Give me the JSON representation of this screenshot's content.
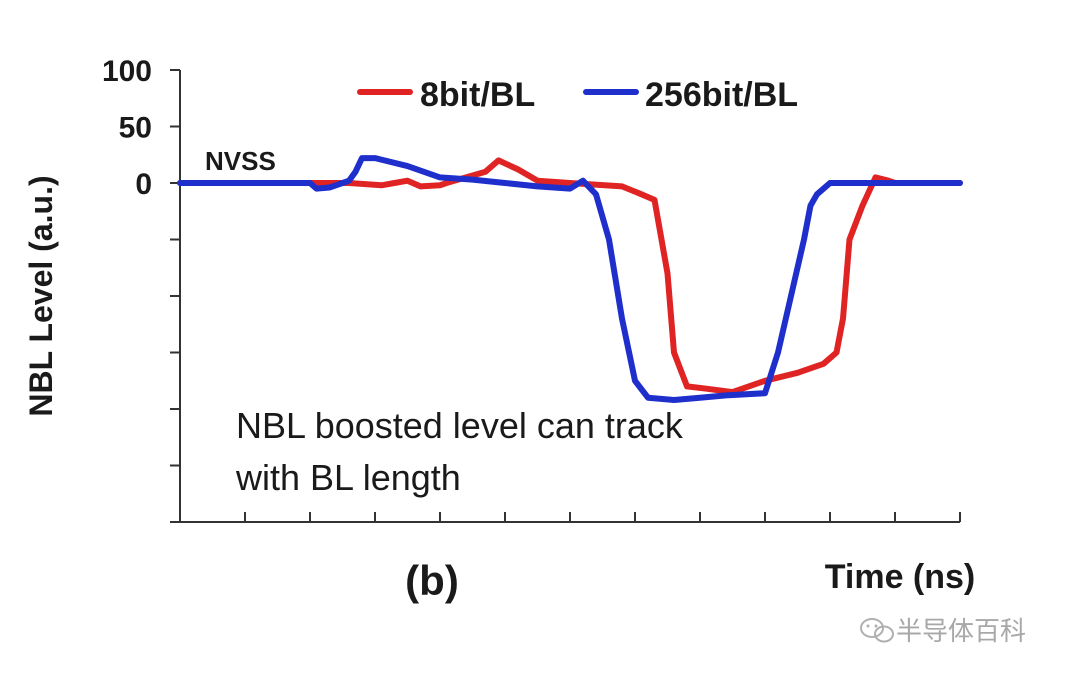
{
  "chart_data": {
    "type": "line",
    "xlabel": "Time (ns)",
    "ylabel": "NBL Level (a.u.)",
    "x_range": [
      0,
      12
    ],
    "y_range": [
      -300,
      100
    ],
    "y_ticks": [
      {
        "value": 100,
        "label": "100"
      },
      {
        "value": 50,
        "label": "50"
      },
      {
        "value": 0,
        "label": "0"
      },
      {
        "value": -50,
        "label": ""
      },
      {
        "value": -100,
        "label": ""
      },
      {
        "value": -150,
        "label": ""
      },
      {
        "value": -200,
        "label": ""
      },
      {
        "value": -250,
        "label": ""
      },
      {
        "value": -300,
        "label": ""
      }
    ],
    "x_ticks": [
      0,
      1,
      2,
      3,
      4,
      5,
      6,
      7,
      8,
      9,
      10,
      11,
      12
    ],
    "grid": false,
    "legend_position": "top",
    "series": [
      {
        "name": "8bit/BL",
        "color": "#e02424",
        "points": [
          [
            0.0,
            0
          ],
          [
            2.0,
            0
          ],
          [
            2.6,
            0
          ],
          [
            3.1,
            -2
          ],
          [
            3.3,
            0
          ],
          [
            3.5,
            2
          ],
          [
            3.7,
            -3
          ],
          [
            4.0,
            -2
          ],
          [
            4.1,
            0
          ],
          [
            4.4,
            5
          ],
          [
            4.7,
            10
          ],
          [
            4.9,
            20
          ],
          [
            5.2,
            12
          ],
          [
            5.5,
            2
          ],
          [
            6.0,
            0
          ],
          [
            6.8,
            -3
          ],
          [
            7.1,
            -10
          ],
          [
            7.3,
            -15
          ],
          [
            7.5,
            -80
          ],
          [
            7.6,
            -150
          ],
          [
            7.8,
            -180
          ],
          [
            8.1,
            -182
          ],
          [
            8.5,
            -185
          ],
          [
            9.0,
            -175
          ],
          [
            9.5,
            -168
          ],
          [
            9.9,
            -160
          ],
          [
            10.1,
            -150
          ],
          [
            10.2,
            -120
          ],
          [
            10.3,
            -50
          ],
          [
            10.5,
            -20
          ],
          [
            10.7,
            5
          ],
          [
            10.9,
            2
          ],
          [
            11.0,
            0
          ],
          [
            12.0,
            0
          ]
        ]
      },
      {
        "name": "256bit/BL",
        "color": "#1f2fcc",
        "points": [
          [
            0.0,
            0
          ],
          [
            2.0,
            0
          ],
          [
            2.1,
            -5
          ],
          [
            2.3,
            -4
          ],
          [
            2.4,
            -2
          ],
          [
            2.5,
            0
          ],
          [
            2.6,
            2
          ],
          [
            2.7,
            10
          ],
          [
            2.8,
            22
          ],
          [
            3.0,
            22
          ],
          [
            3.5,
            15
          ],
          [
            4.0,
            5
          ],
          [
            4.5,
            3
          ],
          [
            5.0,
            0
          ],
          [
            5.5,
            -3
          ],
          [
            6.0,
            -5
          ],
          [
            6.2,
            2
          ],
          [
            6.4,
            -10
          ],
          [
            6.6,
            -50
          ],
          [
            6.8,
            -120
          ],
          [
            7.0,
            -175
          ],
          [
            7.2,
            -190
          ],
          [
            7.6,
            -192
          ],
          [
            8.0,
            -190
          ],
          [
            8.4,
            -188
          ],
          [
            9.0,
            -186
          ],
          [
            9.2,
            -150
          ],
          [
            9.4,
            -100
          ],
          [
            9.6,
            -50
          ],
          [
            9.7,
            -20
          ],
          [
            9.8,
            -10
          ],
          [
            10.0,
            0
          ],
          [
            10.5,
            0
          ],
          [
            12.0,
            0
          ]
        ]
      }
    ],
    "annotations": [
      {
        "text": "NVSS"
      },
      {
        "lines": [
          "NBL boosted level can track",
          "with BL length"
        ]
      }
    ],
    "panel_label": "(b)"
  },
  "watermark": {
    "text": "半导体百科"
  }
}
